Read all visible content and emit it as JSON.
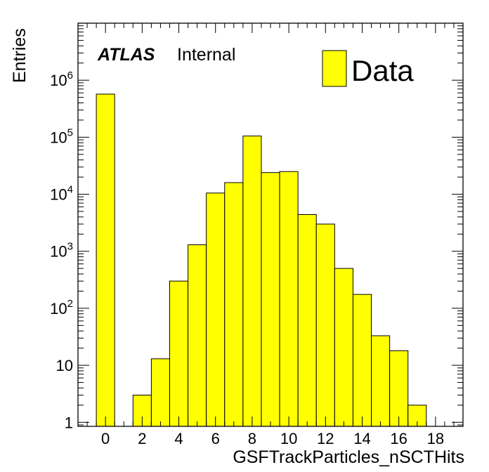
{
  "atlas": {
    "label": "ATLAS",
    "status": "Internal"
  },
  "legend": {
    "label": "Data",
    "color": "#ffff00"
  },
  "chart_data": {
    "type": "bar",
    "histogram": true,
    "title": "",
    "xlabel": "GSFTrackParticles_nSCTHits",
    "ylabel": "Entries",
    "xlim": [
      -1.5,
      19.5
    ],
    "ylim": [
      0.85,
      10000000
    ],
    "yscale": "log",
    "legend_position": "top-right",
    "grid": false,
    "fill_color": "#ffff00",
    "bin_width": 1,
    "bins": [
      {
        "center": 0,
        "value": 570000
      },
      {
        "center": 2,
        "value": 3
      },
      {
        "center": 3,
        "value": 13
      },
      {
        "center": 4,
        "value": 300
      },
      {
        "center": 5,
        "value": 1300
      },
      {
        "center": 6,
        "value": 10500
      },
      {
        "center": 7,
        "value": 16000
      },
      {
        "center": 8,
        "value": 105000
      },
      {
        "center": 9,
        "value": 24000
      },
      {
        "center": 10,
        "value": 25000
      },
      {
        "center": 11,
        "value": 4400
      },
      {
        "center": 12,
        "value": 3000
      },
      {
        "center": 13,
        "value": 500
      },
      {
        "center": 14,
        "value": 175
      },
      {
        "center": 15,
        "value": 33
      },
      {
        "center": 16,
        "value": 18
      },
      {
        "center": 17,
        "value": 2
      }
    ],
    "x_ticks": [
      0,
      2,
      4,
      6,
      8,
      10,
      12,
      14,
      16,
      18
    ],
    "x_tick_labels": [
      "0",
      "2",
      "4",
      "6",
      "8",
      "10",
      "12",
      "14",
      "16",
      "18"
    ],
    "y_ticks": [
      {
        "value": 1,
        "base": "1",
        "exp": ""
      },
      {
        "value": 10,
        "base": "10",
        "exp": ""
      },
      {
        "value": 100,
        "base": "10",
        "exp": "2"
      },
      {
        "value": 1000,
        "base": "10",
        "exp": "3"
      },
      {
        "value": 10000,
        "base": "10",
        "exp": "4"
      },
      {
        "value": 100000,
        "base": "10",
        "exp": "5"
      },
      {
        "value": 1000000,
        "base": "10",
        "exp": "6"
      }
    ]
  }
}
